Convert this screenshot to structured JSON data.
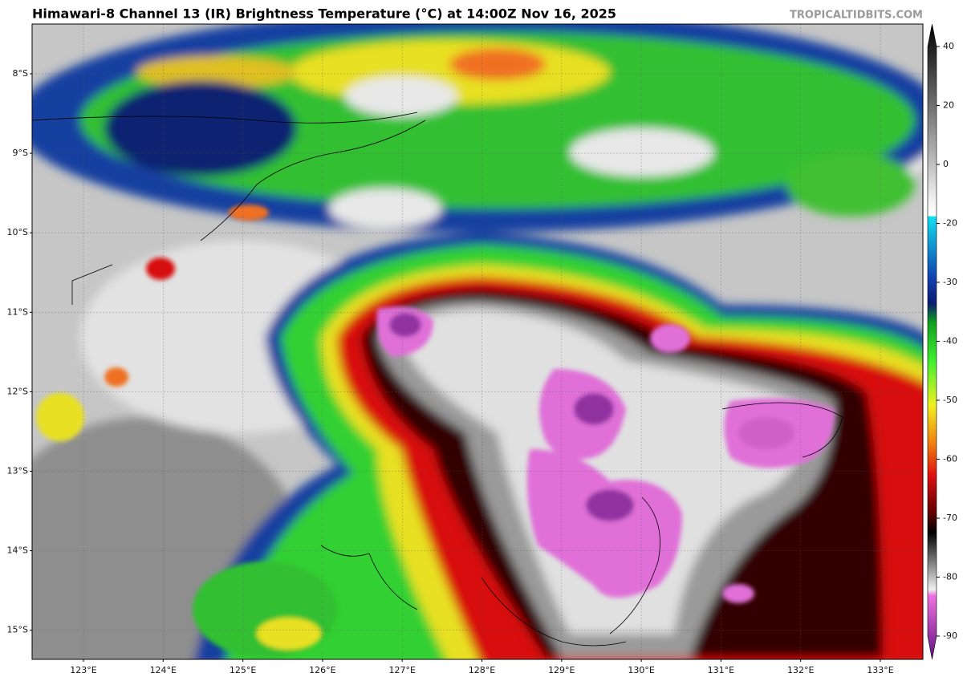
{
  "title": "Himawari-8 Channel 13 (IR) Brightness Temperature (°C) at 14:00Z Nov 16, 2025",
  "watermark": "TROPICALTIDBITS.COM",
  "map": {
    "lat_labels": [
      "8°S",
      "9°S",
      "10°S",
      "11°S",
      "12°S",
      "13°S",
      "14°S",
      "15°S"
    ],
    "lon_labels": [
      "123°E",
      "124°E",
      "125°E",
      "126°E",
      "127°E",
      "128°E",
      "129°E",
      "130°E",
      "131°E",
      "132°E",
      "133°E"
    ]
  },
  "colorbar": {
    "ticks": [
      40,
      20,
      0,
      -20,
      -30,
      -40,
      -50,
      -60,
      -70,
      -80,
      -90
    ]
  }
}
